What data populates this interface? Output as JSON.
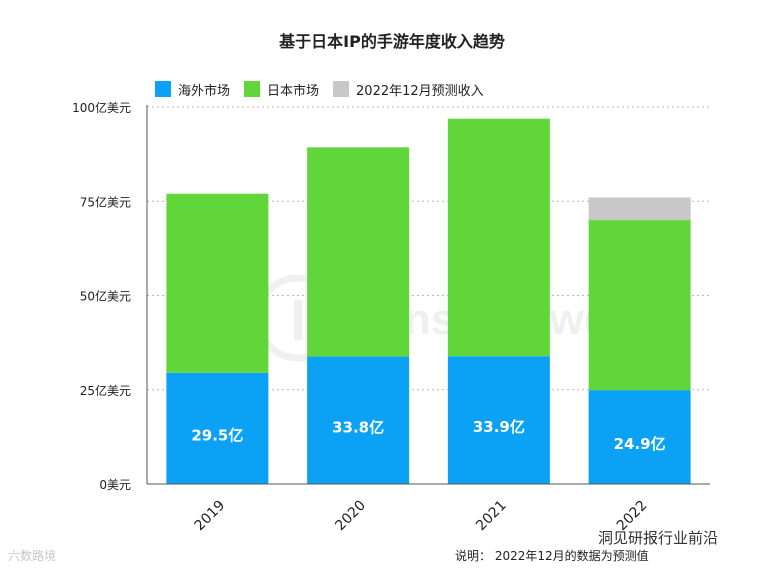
{
  "chart_data": {
    "type": "bar",
    "stacked": true,
    "title": "基于日本IP的手游年度收入趋势",
    "categories": [
      "2019",
      "2020",
      "2021",
      "2022"
    ],
    "series": [
      {
        "name": "海外市场",
        "color": "#0ba2f5",
        "values": [
          29.5,
          33.8,
          33.9,
          24.9
        ],
        "labels": [
          "29.5亿",
          "33.8亿",
          "33.9亿",
          "24.9亿"
        ]
      },
      {
        "name": "日本市场",
        "color": "#60d63a",
        "values": [
          47.5,
          55.5,
          63.0,
          45.1
        ]
      },
      {
        "name": "2022年12月预测收入",
        "color": "#c8c8c8",
        "values": [
          0,
          0,
          0,
          6.0
        ]
      }
    ],
    "ylim": [
      0,
      100
    ],
    "yticks": [
      0,
      25,
      50,
      75,
      100
    ],
    "ytick_labels": [
      "0美元",
      "25亿美元",
      "50亿美元",
      "75亿美元",
      "100亿美元"
    ],
    "grid": true,
    "legend_position": "top-left",
    "note": "说明： 2022年12月的数据为预测值",
    "watermark": "SensorTower",
    "corner_marks": {
      "bottom_left": "六数路境",
      "bottom_right": "洞见研报行业前沿"
    }
  }
}
